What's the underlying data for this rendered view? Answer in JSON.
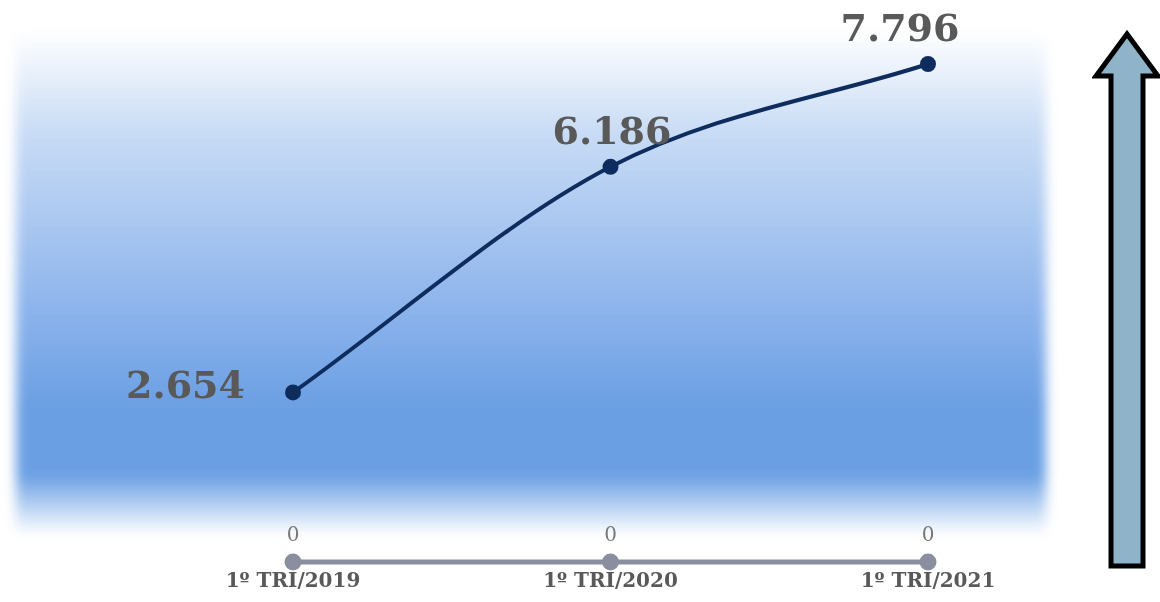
{
  "chart_data": {
    "type": "line",
    "categories": [
      "1º TRI/2019",
      "1º TRI/2020",
      "1º TRI/2021"
    ],
    "series": [
      {
        "color": "#0e2d5e",
        "values": [
          2654,
          6186,
          7796
        ],
        "value_labels": [
          "2.654",
          "6.186",
          "7.796"
        ]
      },
      {
        "color": "#8a8fa0",
        "values": [
          0,
          0,
          0
        ],
        "value_labels": [
          "0",
          "0",
          "0"
        ]
      }
    ],
    "marker": "circle",
    "grid": false,
    "tick_labels": "x"
  }
}
